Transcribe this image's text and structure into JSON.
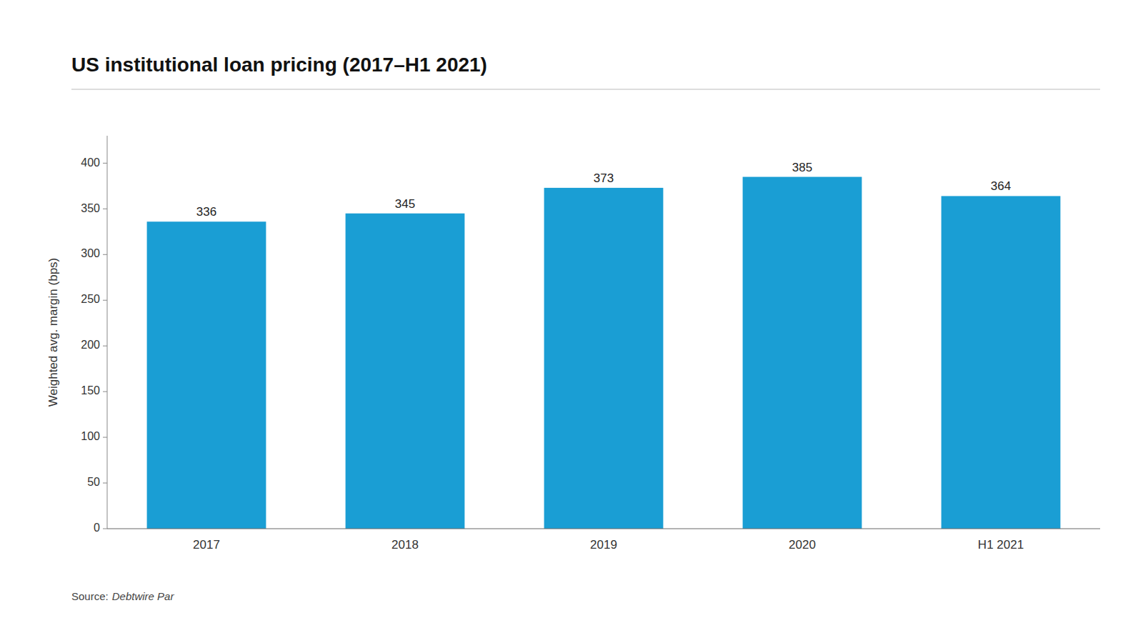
{
  "chart_data": {
    "type": "bar",
    "title": "US institutional loan pricing (2017–H1 2021)",
    "categories": [
      "2017",
      "2018",
      "2019",
      "2020",
      "H1 2021"
    ],
    "values": [
      336,
      345,
      373,
      385,
      364
    ],
    "color": "#1a9ed4",
    "ylabel": "Weighted avg. margin (bps)",
    "ylim": [
      0,
      430
    ],
    "yticks": [
      0,
      50,
      100,
      150,
      200,
      250,
      300,
      350,
      400
    ],
    "grid": false,
    "data_labels": true,
    "annotations": [
      "Source:",
      "Debtwire Par"
    ]
  }
}
